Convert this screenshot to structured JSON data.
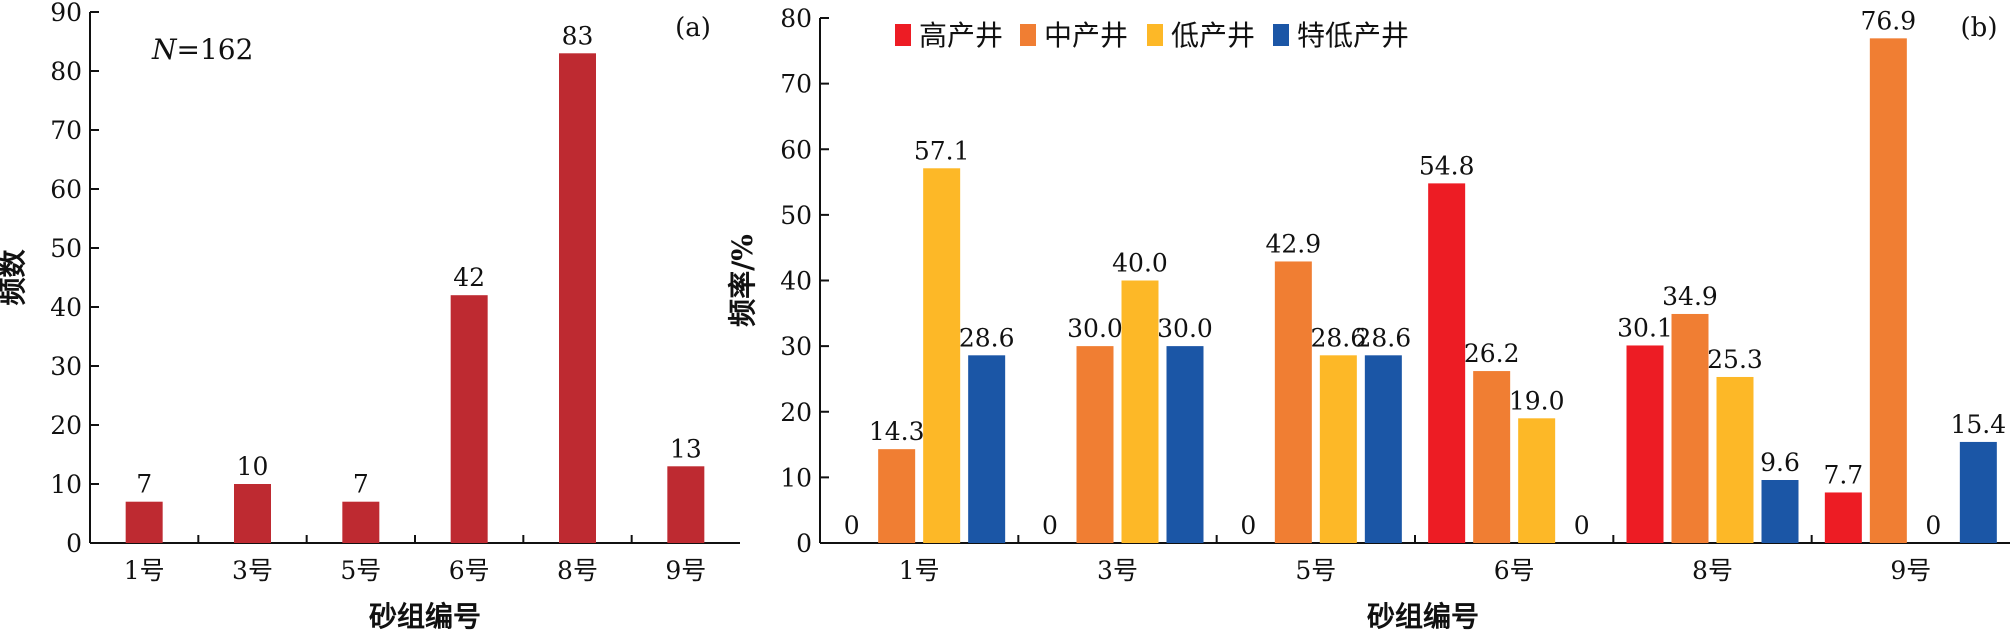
{
  "chart_data": [
    {
      "type": "bar",
      "panel_label": "(a)",
      "annotation": "N=162",
      "annotation_parts": {
        "italic": "N",
        "rest": "=162"
      },
      "categories": [
        "1号",
        "3号",
        "5号",
        "6号",
        "8号",
        "9号"
      ],
      "values": [
        7,
        10,
        7,
        42,
        83,
        13
      ],
      "value_labels": [
        "7",
        "10",
        "7",
        "42",
        "83",
        "13"
      ],
      "xlabel": "砂组编号",
      "ylabel": "频数",
      "ylim": [
        0,
        90
      ],
      "yticks": [
        0,
        10,
        20,
        30,
        40,
        50,
        60,
        70,
        80,
        90
      ],
      "color": "#BE2A31",
      "grid": false
    },
    {
      "type": "bar",
      "panel_label": "(b)",
      "categories": [
        "1号",
        "3号",
        "5号",
        "6号",
        "8号",
        "9号"
      ],
      "series": [
        {
          "name": "高产井",
          "color": "#ED1C24",
          "values": [
            0,
            0,
            0,
            54.8,
            30.1,
            7.7
          ],
          "value_labels": [
            "0",
            "0",
            "0",
            "54.8",
            "30.1",
            "7.7"
          ]
        },
        {
          "name": "中产井",
          "color": "#F07E33",
          "values": [
            14.3,
            30.0,
            42.9,
            26.2,
            34.9,
            76.9
          ],
          "value_labels": [
            "14.3",
            "30.0",
            "42.9",
            "26.2",
            "34.9",
            "76.9"
          ]
        },
        {
          "name": "低产井",
          "color": "#FDB827",
          "values": [
            57.1,
            40.0,
            28.6,
            19.0,
            25.3,
            0
          ],
          "value_labels": [
            "57.1",
            "40.0",
            "28.6",
            "19.0",
            "25.3",
            "0"
          ]
        },
        {
          "name": "特低产井",
          "color": "#1B56A6",
          "values": [
            28.6,
            30.0,
            28.6,
            0,
            9.6,
            15.4
          ],
          "value_labels": [
            "28.6",
            "30.0",
            "28.6",
            "0",
            "9.6",
            "15.4"
          ]
        }
      ],
      "xlabel": "砂组编号",
      "ylabel": "频率/%",
      "ylim": [
        0,
        80
      ],
      "yticks": [
        0,
        10,
        20,
        30,
        40,
        50,
        60,
        70,
        80
      ],
      "legend_position": "top-left",
      "grid": false
    }
  ]
}
